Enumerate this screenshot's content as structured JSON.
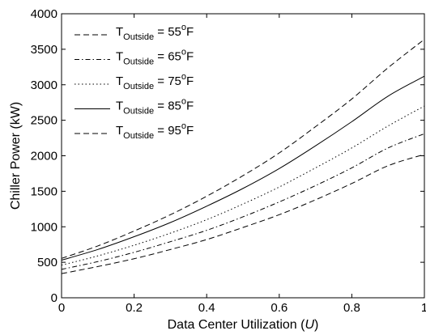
{
  "chart_data": {
    "type": "line",
    "xlabel": "Data Center Utilization (",
    "xlabel_symbol": "U",
    "xlabel_suffix": ")",
    "ylabel": "Chiller Power (kW)",
    "xlim": [
      0,
      1
    ],
    "ylim": [
      0,
      4000
    ],
    "x_ticks": [
      "0",
      "0.2",
      "0.4",
      "0.6",
      "0.8",
      "1"
    ],
    "y_ticks": [
      "0",
      "500",
      "1000",
      "1500",
      "2000",
      "2500",
      "3000",
      "3500",
      "4000"
    ],
    "grid": false,
    "legend_position": "top-left",
    "x": [
      0,
      0.1,
      0.2,
      0.3,
      0.4,
      0.5,
      0.6,
      0.7,
      0.8,
      0.9,
      1.0
    ],
    "series": [
      {
        "name": "T_Outside = 55°F",
        "legend": {
          "base": "T",
          "sub": "Outside",
          "mid": " = 55",
          "sup": "o",
          "tail": "F"
        },
        "style": "dashed",
        "values": [
          340,
          440,
          550,
          680,
          820,
          990,
          1170,
          1380,
          1610,
          1860,
          2020
        ]
      },
      {
        "name": "T_Outside = 65°F",
        "legend": {
          "base": "T",
          "sub": "Outside",
          "mid": " = 65",
          "sup": "o",
          "tail": "F"
        },
        "style": "dashdot",
        "values": [
          400,
          510,
          640,
          790,
          950,
          1140,
          1350,
          1580,
          1830,
          2110,
          2310
        ]
      },
      {
        "name": "T_Outside = 75°F",
        "legend": {
          "base": "T",
          "sub": "Outside",
          "mid": " = 75",
          "sup": "o",
          "tail": "F"
        },
        "style": "dotted",
        "values": [
          460,
          590,
          740,
          910,
          1100,
          1320,
          1560,
          1830,
          2110,
          2420,
          2700
        ]
      },
      {
        "name": "T_Outside = 85°F",
        "legend": {
          "base": "T",
          "sub": "Outside",
          "mid": " = 85",
          "sup": "o",
          "tail": "F"
        },
        "style": "solid",
        "values": [
          530,
          680,
          860,
          1060,
          1290,
          1540,
          1820,
          2140,
          2480,
          2840,
          3120
        ]
      },
      {
        "name": "T_Outside = 95°F",
        "legend": {
          "base": "T",
          "sub": "Outside",
          "mid": " = 95",
          "sup": "o",
          "tail": "F"
        },
        "style": "dashed",
        "values": [
          555,
          730,
          940,
          1170,
          1430,
          1720,
          2040,
          2410,
          2800,
          3240,
          3640
        ]
      }
    ]
  }
}
